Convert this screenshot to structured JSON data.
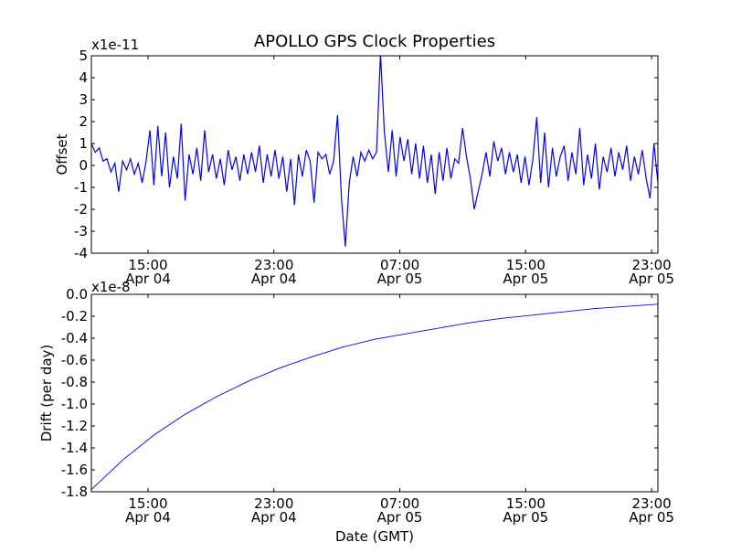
{
  "chart_data": [
    {
      "type": "line",
      "title": "APOLLO GPS Clock Properties",
      "ylabel": "Offset",
      "xlabel": "",
      "y_multiplier": "x1e-11",
      "ylim": [
        -4,
        5
      ],
      "yticks": [
        "5",
        "4",
        "3",
        "2",
        "1",
        "0",
        "-1",
        "-2",
        "-3",
        "-4"
      ],
      "ytick_values": [
        5,
        4,
        3,
        2,
        1,
        0,
        -1,
        -2,
        -3,
        -4
      ],
      "xlim_hours": [
        11.4,
        47.4
      ],
      "xtick_hours": [
        15,
        23,
        31,
        39,
        47
      ],
      "xtick_labels": [
        [
          "15:00",
          "Apr 04"
        ],
        [
          "23:00",
          "Apr 04"
        ],
        [
          "07:00",
          "Apr 05"
        ],
        [
          "15:00",
          "Apr 05"
        ],
        [
          "23:00",
          "Apr 05"
        ]
      ],
      "series": [
        {
          "name": "Offset",
          "color": "#0000ff",
          "x_start": 11.4,
          "x_end": 47.4,
          "values": [
            1.0,
            0.6,
            0.8,
            0.2,
            0.3,
            -0.3,
            0.1,
            -1.2,
            0.2,
            -0.2,
            0.3,
            -0.4,
            0.1,
            -0.8,
            0.2,
            1.6,
            -0.9,
            1.8,
            -0.5,
            1.5,
            -1.0,
            0.4,
            -0.6,
            1.9,
            -1.6,
            0.5,
            -0.4,
            0.8,
            -0.7,
            1.6,
            -0.3,
            0.5,
            -0.6,
            0.3,
            -0.9,
            0.7,
            -0.2,
            0.4,
            -0.7,
            0.5,
            -0.4,
            0.6,
            -0.3,
            0.9,
            -0.8,
            0.5,
            -0.5,
            0.7,
            -0.6,
            0.4,
            -1.2,
            0.3,
            -1.8,
            0.5,
            -0.5,
            0.7,
            0.2,
            -1.7,
            0.6,
            0.3,
            0.5,
            -0.4,
            0.2,
            2.3,
            -1.5,
            -3.7,
            -0.8,
            0.4,
            -0.5,
            0.6,
            0.2,
            0.7,
            0.3,
            0.6,
            5.1,
            1.5,
            -0.3,
            1.6,
            -0.5,
            1.3,
            0.2,
            1.2,
            -0.4,
            1.0,
            -0.6,
            0.9,
            -0.8,
            0.5,
            -1.3,
            0.6,
            -0.7,
            0.8,
            -0.6,
            0.3,
            0.1,
            1.7,
            0.4,
            -0.6,
            -2.0,
            -1.2,
            -0.4,
            0.6,
            -0.5,
            1.1,
            0.2,
            0.8,
            -0.4,
            0.6,
            -0.3,
            0.5,
            -0.8,
            0.4,
            -0.9,
            0.3,
            2.2,
            -0.8,
            1.5,
            -1.0,
            0.8,
            -0.5,
            0.4,
            0.9,
            -0.7,
            0.6,
            -0.4,
            1.7,
            -0.9,
            0.5,
            -0.6,
            1.0,
            -1.1,
            0.4,
            -0.3,
            0.8,
            -0.5,
            0.6,
            -0.2,
            0.9,
            -0.7,
            0.4,
            -0.4,
            0.7,
            -0.6,
            -1.5,
            1.0,
            -0.8
          ]
        }
      ]
    },
    {
      "type": "line",
      "ylabel": "Drift (per day)",
      "xlabel": "Date (GMT)",
      "y_multiplier": "x1e-8",
      "ylim": [
        -1.8,
        0.0
      ],
      "yticks": [
        "0.0",
        "-0.2",
        "-0.4",
        "-0.6",
        "-0.8",
        "-1.0",
        "-1.2",
        "-1.4",
        "-1.6",
        "-1.8"
      ],
      "ytick_values": [
        0,
        -0.2,
        -0.4,
        -0.6,
        -0.8,
        -1.0,
        -1.2,
        -1.4,
        -1.6,
        -1.8
      ],
      "xlim_hours": [
        11.4,
        47.4
      ],
      "xtick_hours": [
        15,
        23,
        31,
        39,
        47
      ],
      "xtick_labels": [
        [
          "15:00",
          "Apr 04"
        ],
        [
          "23:00",
          "Apr 04"
        ],
        [
          "07:00",
          "Apr 05"
        ],
        [
          "15:00",
          "Apr 05"
        ],
        [
          "23:00",
          "Apr 05"
        ]
      ],
      "series": [
        {
          "name": "Drift",
          "color": "#0000ff",
          "x_start": 11.4,
          "x_end": 47.4,
          "values": [
            -1.78,
            -1.51,
            -1.28,
            -1.09,
            -0.93,
            -0.79,
            -0.67,
            -0.57,
            -0.48,
            -0.41,
            -0.36,
            -0.31,
            -0.26,
            -0.22,
            -0.19,
            -0.16,
            -0.13,
            -0.11,
            -0.09
          ]
        }
      ]
    }
  ]
}
